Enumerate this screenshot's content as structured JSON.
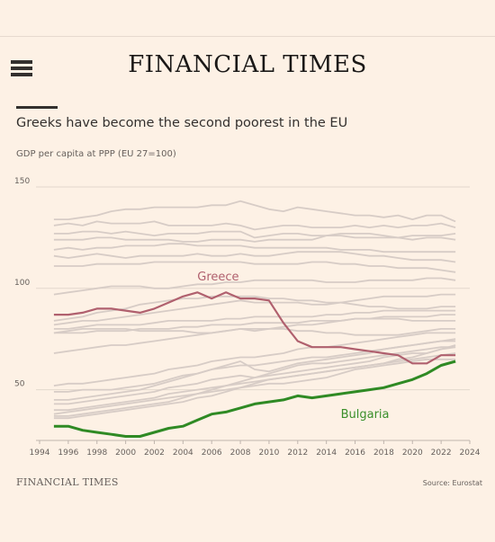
{
  "header": {
    "brand": "FINANCIAL TIMES",
    "menu_icon": "hamburger-menu-icon"
  },
  "footer": {
    "brand": "FINANCIAL TIMES",
    "source": "Source: Eurostat"
  },
  "colors": {
    "background": "#fdf1e5",
    "grid": "#e3d8cd",
    "others": "#d7ccc6",
    "greece": "#b0606e",
    "bulgaria": "#2f8a24",
    "bulgaria_label": "#3a8f2a"
  },
  "chart_data": {
    "type": "line",
    "title": "Greeks have become the second poorest in the EU",
    "subtitle": "GDP per capita at PPP (EU 27=100)",
    "xlabel": "",
    "ylabel": "",
    "xlim": [
      1994,
      2024
    ],
    "ylim": [
      25,
      150
    ],
    "xticks": [
      "1994",
      "1996",
      "1998",
      "2000",
      "2002",
      "2004",
      "2006",
      "2008",
      "2010",
      "2012",
      "2014",
      "2016",
      "2018",
      "2020",
      "2022",
      "2024"
    ],
    "yticks": [
      50,
      100,
      150
    ],
    "grid": true,
    "legend": "none",
    "x": [
      1995,
      1996,
      1997,
      1998,
      1999,
      2000,
      2001,
      2002,
      2003,
      2004,
      2005,
      2006,
      2007,
      2008,
      2009,
      2010,
      2011,
      2012,
      2013,
      2014,
      2015,
      2016,
      2017,
      2018,
      2019,
      2020,
      2021,
      2022,
      2023
    ],
    "highlighted_series": [
      {
        "name": "Greece",
        "color_key": "greece",
        "label_year": 2005,
        "label_value": 104,
        "values": [
          87,
          87,
          88,
          90,
          90,
          89,
          88,
          90,
          93,
          96,
          98,
          95,
          98,
          95,
          95,
          94,
          83,
          74,
          71,
          71,
          71,
          70,
          69,
          68,
          67,
          63,
          63,
          67,
          67
        ]
      },
      {
        "name": "Bulgaria",
        "color_key": "bulgaria",
        "label_year": 2015,
        "label_value": 36,
        "values": [
          32,
          32,
          30,
          29,
          28,
          27,
          27,
          29,
          31,
          32,
          35,
          38,
          39,
          41,
          43,
          44,
          45,
          47,
          46,
          47,
          48,
          49,
          50,
          51,
          53,
          55,
          58,
          62,
          64
        ]
      }
    ],
    "background_series": [
      {
        "values": [
          134,
          134,
          135,
          136,
          138,
          139,
          139,
          140,
          140,
          140,
          140,
          141,
          141,
          143,
          141,
          139,
          138,
          140,
          139,
          138,
          137,
          136,
          136,
          135,
          136,
          134,
          136,
          136,
          133
        ]
      },
      {
        "values": [
          131,
          132,
          131,
          133,
          132,
          132,
          132,
          133,
          131,
          131,
          131,
          131,
          132,
          131,
          129,
          130,
          131,
          131,
          130,
          130,
          130,
          131,
          130,
          131,
          130,
          131,
          131,
          132,
          130
        ]
      },
      {
        "values": [
          127,
          127,
          128,
          128,
          127,
          128,
          127,
          126,
          127,
          127,
          127,
          128,
          128,
          128,
          125,
          126,
          127,
          127,
          126,
          126,
          126,
          125,
          125,
          125,
          125,
          126,
          126,
          126,
          127
        ]
      },
      {
        "values": [
          124,
          124,
          124,
          125,
          125,
          124,
          124,
          124,
          124,
          123,
          123,
          124,
          124,
          124,
          123,
          124,
          124,
          124,
          124,
          126,
          127,
          127,
          127,
          126,
          125,
          124,
          125,
          125,
          124
        ]
      },
      {
        "values": [
          119,
          120,
          119,
          120,
          120,
          121,
          121,
          121,
          122,
          122,
          121,
          121,
          121,
          121,
          120,
          120,
          120,
          120,
          120,
          120,
          119,
          119,
          119,
          118,
          118,
          118,
          118,
          118,
          118
        ]
      },
      {
        "values": [
          116,
          115,
          116,
          117,
          116,
          115,
          116,
          116,
          116,
          116,
          117,
          116,
          116,
          117,
          116,
          116,
          117,
          118,
          118,
          118,
          118,
          117,
          116,
          116,
          115,
          114,
          114,
          114,
          113
        ]
      },
      {
        "values": [
          111,
          111,
          111,
          112,
          112,
          112,
          112,
          113,
          113,
          113,
          113,
          113,
          113,
          113,
          112,
          112,
          112,
          112,
          113,
          113,
          112,
          112,
          111,
          111,
          110,
          110,
          110,
          109,
          108
        ]
      },
      {
        "values": [
          97,
          98,
          99,
          100,
          101,
          101,
          101,
          100,
          100,
          101,
          102,
          102,
          103,
          103,
          104,
          104,
          104,
          104,
          104,
          103,
          103,
          103,
          104,
          104,
          104,
          104,
          105,
          105,
          104
        ]
      },
      {
        "values": [
          84,
          85,
          86,
          88,
          89,
          90,
          92,
          93,
          94,
          95,
          95,
          96,
          96,
          96,
          96,
          95,
          95,
          94,
          94,
          93,
          93,
          92,
          91,
          91,
          90,
          90,
          90,
          91,
          91
        ]
      },
      {
        "values": [
          82,
          83,
          84,
          84,
          85,
          86,
          87,
          88,
          89,
          90,
          91,
          92,
          93,
          94,
          93,
          93,
          93,
          93,
          92,
          92,
          93,
          94,
          95,
          96,
          96,
          96,
          96,
          97,
          97
        ]
      },
      {
        "values": [
          80,
          80,
          81,
          82,
          82,
          82,
          82,
          83,
          84,
          84,
          84,
          84,
          85,
          85,
          86,
          86,
          86,
          86,
          86,
          87,
          87,
          88,
          88,
          89,
          89,
          89,
          89,
          89,
          89
        ]
      },
      {
        "values": [
          78,
          78,
          78,
          79,
          79,
          79,
          80,
          80,
          80,
          81,
          81,
          82,
          82,
          82,
          83,
          83,
          83,
          83,
          84,
          84,
          84,
          85,
          85,
          86,
          86,
          86,
          86,
          87,
          87
        ]
      },
      {
        "values": [
          78,
          79,
          80,
          80,
          80,
          80,
          79,
          79,
          79,
          79,
          78,
          78,
          79,
          80,
          80,
          80,
          80,
          79,
          79,
          78,
          78,
          77,
          77,
          77,
          77,
          78,
          79,
          80,
          80
        ]
      },
      {
        "values": [
          68,
          69,
          70,
          71,
          72,
          72,
          73,
          74,
          75,
          76,
          77,
          78,
          79,
          80,
          79,
          80,
          81,
          82,
          82,
          83,
          84,
          85,
          85,
          85,
          85,
          84,
          84,
          84,
          84
        ]
      },
      {
        "values": [
          52,
          53,
          53,
          54,
          55,
          56,
          57,
          58,
          60,
          61,
          62,
          64,
          65,
          66,
          66,
          67,
          68,
          70,
          71,
          71,
          72,
          73,
          74,
          75,
          76,
          77,
          78,
          78,
          78
        ]
      },
      {
        "values": [
          49,
          49,
          50,
          50,
          50,
          51,
          52,
          53,
          55,
          57,
          58,
          60,
          61,
          62,
          62,
          63,
          64,
          65,
          66,
          66,
          67,
          68,
          69,
          70,
          71,
          72,
          73,
          74,
          75
        ]
      },
      {
        "values": [
          45,
          45,
          46,
          47,
          48,
          49,
          50,
          52,
          54,
          56,
          58,
          60,
          62,
          64,
          60,
          59,
          61,
          63,
          64,
          65,
          66,
          67,
          68,
          70,
          71,
          72,
          73,
          74,
          74
        ]
      },
      {
        "values": [
          43,
          43,
          44,
          45,
          46,
          47,
          48,
          49,
          51,
          52,
          53,
          55,
          56,
          57,
          56,
          57,
          58,
          59,
          60,
          61,
          62,
          63,
          64,
          66,
          67,
          68,
          68,
          70,
          71
        ]
      },
      {
        "values": [
          40,
          40,
          41,
          42,
          43,
          44,
          45,
          46,
          48,
          49,
          50,
          51,
          52,
          53,
          54,
          55,
          56,
          57,
          58,
          59,
          60,
          61,
          62,
          63,
          64,
          65,
          66,
          67,
          68
        ]
      },
      {
        "values": [
          37,
          37,
          38,
          39,
          40,
          41,
          42,
          43,
          44,
          46,
          48,
          50,
          52,
          54,
          56,
          58,
          60,
          62,
          63,
          63,
          64,
          65,
          66,
          67,
          68,
          69,
          70,
          71,
          71
        ]
      },
      {
        "values": [
          36,
          36,
          37,
          38,
          39,
          40,
          41,
          42,
          43,
          44,
          46,
          47,
          49,
          51,
          53,
          55,
          56,
          57,
          58,
          59,
          60,
          61,
          62,
          63,
          65,
          66,
          68,
          70,
          72
        ]
      },
      {
        "values": [
          38,
          39,
          40,
          41,
          42,
          43,
          44,
          45,
          46,
          47,
          48,
          49,
          50,
          51,
          52,
          53,
          53,
          54,
          55,
          56,
          58,
          60,
          61,
          62,
          63,
          64,
          65,
          65,
          65
        ]
      }
    ]
  }
}
